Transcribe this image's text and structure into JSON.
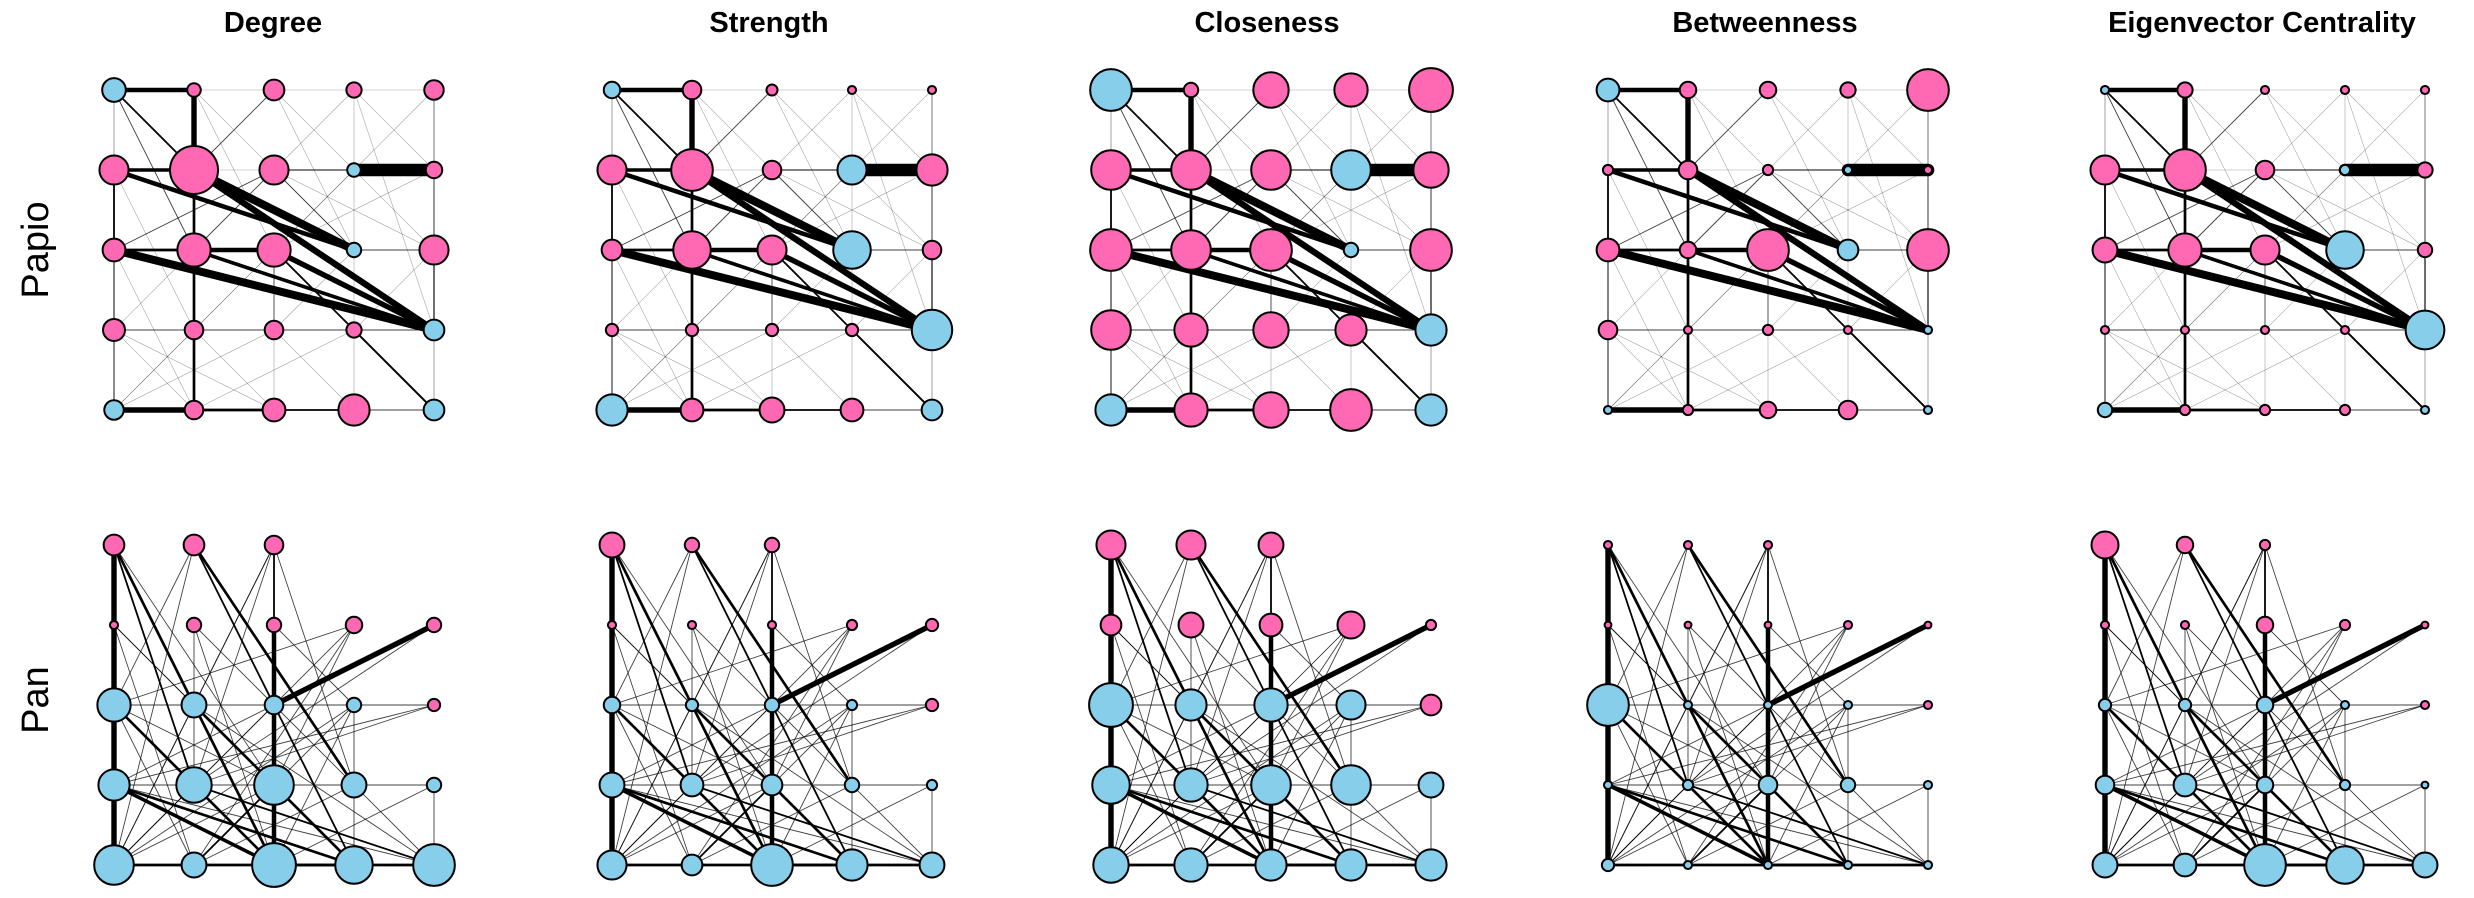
{
  "columns": [
    "Degree",
    "Strength",
    "Closeness",
    "Betweenness",
    "Eigenvector Centrality"
  ],
  "rows": [
    "Papio",
    "Pan"
  ],
  "colors": {
    "female": "#ff69b4",
    "male": "#87ceeb",
    "outline": "#000000",
    "edge": "#000000"
  },
  "node_size_scale": {
    "min_radius_px": 3,
    "max_radius_px": 24,
    "value_range": [
      0,
      1
    ]
  },
  "panels": {
    "Papio": {
      "nodes": [
        {
          "id": 0,
          "r": 0,
          "c": 0,
          "sex": "male"
        },
        {
          "id": 1,
          "r": 0,
          "c": 1,
          "sex": "female"
        },
        {
          "id": 2,
          "r": 0,
          "c": 2,
          "sex": "female"
        },
        {
          "id": 3,
          "r": 0,
          "c": 3,
          "sex": "female"
        },
        {
          "id": 4,
          "r": 0,
          "c": 4,
          "sex": "female"
        },
        {
          "id": 5,
          "r": 1,
          "c": 0,
          "sex": "female"
        },
        {
          "id": 6,
          "r": 1,
          "c": 1,
          "sex": "female"
        },
        {
          "id": 7,
          "r": 1,
          "c": 2,
          "sex": "female"
        },
        {
          "id": 8,
          "r": 1,
          "c": 3,
          "sex": "male"
        },
        {
          "id": 9,
          "r": 1,
          "c": 4,
          "sex": "female"
        },
        {
          "id": 10,
          "r": 2,
          "c": 0,
          "sex": "female"
        },
        {
          "id": 11,
          "r": 2,
          "c": 1,
          "sex": "female"
        },
        {
          "id": 12,
          "r": 2,
          "c": 2,
          "sex": "female"
        },
        {
          "id": 13,
          "r": 2,
          "c": 3,
          "sex": "male"
        },
        {
          "id": 14,
          "r": 2,
          "c": 4,
          "sex": "female"
        },
        {
          "id": 15,
          "r": 3,
          "c": 0,
          "sex": "female"
        },
        {
          "id": 16,
          "r": 3,
          "c": 1,
          "sex": "female"
        },
        {
          "id": 17,
          "r": 3,
          "c": 2,
          "sex": "female"
        },
        {
          "id": 18,
          "r": 3,
          "c": 3,
          "sex": "female"
        },
        {
          "id": 19,
          "r": 3,
          "c": 4,
          "sex": "male"
        },
        {
          "id": 20,
          "r": 4,
          "c": 0,
          "sex": "male"
        },
        {
          "id": 21,
          "r": 4,
          "c": 1,
          "sex": "female"
        },
        {
          "id": 22,
          "r": 4,
          "c": 2,
          "sex": "female"
        },
        {
          "id": 23,
          "r": 4,
          "c": 3,
          "sex": "female"
        },
        {
          "id": 24,
          "r": 4,
          "c": 4,
          "sex": "male"
        }
      ],
      "edges": [
        [
          0,
          1,
          5
        ],
        [
          1,
          6,
          6
        ],
        [
          5,
          6,
          4
        ],
        [
          5,
          10,
          2
        ],
        [
          6,
          13,
          9
        ],
        [
          6,
          19,
          7
        ],
        [
          5,
          13,
          5
        ],
        [
          10,
          19,
          9
        ],
        [
          10,
          11,
          3
        ],
        [
          11,
          12,
          5
        ],
        [
          12,
          19,
          6
        ],
        [
          11,
          19,
          4
        ],
        [
          8,
          9,
          14
        ],
        [
          7,
          8,
          1.5
        ],
        [
          20,
          21,
          6
        ],
        [
          21,
          22,
          3
        ],
        [
          22,
          23,
          2
        ],
        [
          23,
          24,
          1
        ],
        [
          14,
          19,
          1.5
        ],
        [
          15,
          16,
          1
        ],
        [
          16,
          17,
          1
        ],
        [
          17,
          18,
          1
        ],
        [
          18,
          19,
          1
        ],
        [
          9,
          14,
          1
        ],
        [
          4,
          9,
          0.8
        ],
        [
          12,
          24,
          2
        ],
        [
          18,
          24,
          2
        ],
        [
          13,
          14,
          1
        ],
        [
          6,
          21,
          3
        ],
        [
          0,
          6,
          2
        ],
        [
          0,
          11,
          1
        ],
        [
          1,
          7,
          0.5
        ],
        [
          2,
          6,
          1
        ],
        [
          3,
          7,
          0.5
        ],
        [
          4,
          8,
          0.5
        ],
        [
          5,
          9,
          0.5
        ],
        [
          5,
          15,
          1
        ],
        [
          5,
          20,
          1
        ],
        [
          10,
          20,
          1
        ],
        [
          15,
          20,
          0.5
        ],
        [
          2,
          13,
          0.5
        ],
        [
          2,
          14,
          0.5
        ],
        [
          3,
          13,
          0.5
        ],
        [
          3,
          19,
          0.5
        ],
        [
          4,
          19,
          0.5
        ],
        [
          7,
          13,
          1
        ],
        [
          7,
          14,
          0.5
        ],
        [
          8,
          12,
          0.5
        ],
        [
          9,
          12,
          0.5
        ],
        [
          10,
          7,
          1
        ],
        [
          11,
          7,
          1
        ],
        [
          12,
          8,
          0.5
        ],
        [
          15,
          11,
          0.5
        ],
        [
          16,
          12,
          0.5
        ],
        [
          17,
          13,
          0.5
        ],
        [
          20,
          12,
          0.5
        ],
        [
          20,
          16,
          0.5
        ],
        [
          21,
          16,
          0.5
        ],
        [
          22,
          17,
          0.5
        ],
        [
          23,
          18,
          0.5
        ],
        [
          24,
          14,
          0.5
        ],
        [
          15,
          21,
          0.5
        ],
        [
          16,
          22,
          0.5
        ],
        [
          17,
          23,
          0.5
        ],
        [
          18,
          14,
          0.5
        ],
        [
          0,
          5,
          0.5
        ],
        [
          1,
          2,
          0.5
        ],
        [
          2,
          3,
          0.5
        ],
        [
          3,
          4,
          0.5
        ],
        [
          10,
          15,
          0.5
        ],
        [
          6,
          11,
          2
        ],
        [
          11,
          16,
          1
        ],
        [
          12,
          17,
          1
        ],
        [
          13,
          18,
          0.5
        ],
        [
          14,
          24,
          0.5
        ],
        [
          0,
          10,
          0.5
        ],
        [
          1,
          12,
          0.5
        ],
        [
          3,
          9,
          0.5
        ],
        [
          4,
          14,
          0.5
        ],
        [
          5,
          16,
          0.5
        ],
        [
          10,
          21,
          0.5
        ],
        [
          15,
          22,
          0.5
        ],
        [
          20,
          17,
          0.5
        ],
        [
          21,
          18,
          0.5
        ]
      ],
      "sizes": {
        "Degree": [
          0.42,
          0.18,
          0.35,
          0.22,
          0.32,
          0.55,
          1.0,
          0.55,
          0.18,
          0.25,
          0.4,
          0.65,
          0.65,
          0.2,
          0.55,
          0.38,
          0.3,
          0.3,
          0.22,
          0.35,
          0.32,
          0.3,
          0.4,
          0.6,
          0.35
        ],
        "Strength": [
          0.25,
          0.3,
          0.12,
          0.05,
          0.05,
          0.55,
          0.85,
          0.3,
          0.55,
          0.6,
          0.35,
          0.75,
          0.55,
          0.75,
          0.3,
          0.15,
          0.15,
          0.15,
          0.15,
          0.82,
          0.6,
          0.4,
          0.45,
          0.4,
          0.35
        ],
        "Closeness": [
          0.85,
          0.2,
          0.7,
          0.65,
          0.9,
          0.8,
          0.8,
          0.8,
          0.8,
          0.7,
          0.85,
          0.8,
          0.85,
          0.2,
          0.85,
          0.8,
          0.65,
          0.7,
          0.6,
          0.6,
          0.6,
          0.65,
          0.7,
          0.85,
          0.6
        ],
        "Betweenness": [
          0.4,
          0.25,
          0.25,
          0.22,
          0.85,
          0.1,
          0.3,
          0.1,
          0.05,
          0.05,
          0.4,
          0.25,
          0.85,
          0.35,
          0.85,
          0.3,
          0.05,
          0.1,
          0.05,
          0.05,
          0.05,
          0.1,
          0.25,
          0.3,
          0.05
        ],
        "Eigenvector Centrality": [
          0.05,
          0.22,
          0.05,
          0.05,
          0.05,
          0.55,
          0.85,
          0.3,
          0.1,
          0.22,
          0.45,
          0.65,
          0.55,
          0.75,
          0.2,
          0.05,
          0.05,
          0.05,
          0.05,
          0.78,
          0.2,
          0.1,
          0.1,
          0.1,
          0.05
        ]
      }
    },
    "Pan": {
      "nodes": [
        {
          "id": 0,
          "r": 0,
          "c": 0,
          "sex": "female"
        },
        {
          "id": 1,
          "r": 0,
          "c": 1,
          "sex": "female"
        },
        {
          "id": 2,
          "r": 0,
          "c": 2,
          "sex": "female"
        },
        {
          "id": 3,
          "r": 1,
          "c": 0,
          "sex": "female"
        },
        {
          "id": 4,
          "r": 1,
          "c": 1,
          "sex": "female"
        },
        {
          "id": 5,
          "r": 1,
          "c": 2,
          "sex": "female"
        },
        {
          "id": 6,
          "r": 1,
          "c": 3,
          "sex": "female"
        },
        {
          "id": 7,
          "r": 1,
          "c": 4,
          "sex": "female"
        },
        {
          "id": 8,
          "r": 2,
          "c": 0,
          "sex": "male"
        },
        {
          "id": 9,
          "r": 2,
          "c": 1,
          "sex": "male"
        },
        {
          "id": 10,
          "r": 2,
          "c": 2,
          "sex": "male"
        },
        {
          "id": 11,
          "r": 2,
          "c": 3,
          "sex": "male"
        },
        {
          "id": 12,
          "r": 2,
          "c": 4,
          "sex": "female"
        },
        {
          "id": 13,
          "r": 3,
          "c": 0,
          "sex": "male"
        },
        {
          "id": 14,
          "r": 3,
          "c": 1,
          "sex": "male"
        },
        {
          "id": 15,
          "r": 3,
          "c": 2,
          "sex": "male"
        },
        {
          "id": 16,
          "r": 3,
          "c": 3,
          "sex": "male"
        },
        {
          "id": 17,
          "r": 3,
          "c": 4,
          "sex": "male"
        },
        {
          "id": 18,
          "r": 4,
          "c": 0,
          "sex": "male"
        },
        {
          "id": 19,
          "r": 4,
          "c": 1,
          "sex": "male"
        },
        {
          "id": 20,
          "r": 4,
          "c": 2,
          "sex": "male"
        },
        {
          "id": 21,
          "r": 4,
          "c": 3,
          "sex": "male"
        },
        {
          "id": 22,
          "r": 4,
          "c": 4,
          "sex": "male"
        }
      ],
      "edges": [
        [
          0,
          18,
          6
        ],
        [
          0,
          20,
          3
        ],
        [
          0,
          14,
          2
        ],
        [
          1,
          16,
          3
        ],
        [
          1,
          21,
          2
        ],
        [
          2,
          20,
          2
        ],
        [
          2,
          16,
          1
        ],
        [
          5,
          20,
          5
        ],
        [
          5,
          15,
          3
        ],
        [
          10,
          7,
          6
        ],
        [
          10,
          15,
          2
        ],
        [
          13,
          20,
          4
        ],
        [
          13,
          21,
          3
        ],
        [
          18,
          22,
          3
        ],
        [
          18,
          19,
          2
        ],
        [
          19,
          20,
          2
        ],
        [
          20,
          21,
          3
        ],
        [
          21,
          22,
          2
        ],
        [
          8,
          20,
          3
        ],
        [
          8,
          14,
          2
        ],
        [
          9,
          21,
          3
        ],
        [
          9,
          15,
          2
        ],
        [
          14,
          22,
          2
        ],
        [
          15,
          19,
          2
        ],
        [
          3,
          19,
          1
        ],
        [
          3,
          15,
          1
        ],
        [
          4,
          20,
          1
        ],
        [
          4,
          14,
          1
        ],
        [
          6,
          15,
          1
        ],
        [
          6,
          19,
          1
        ],
        [
          7,
          14,
          1
        ],
        [
          0,
          9,
          1
        ],
        [
          1,
          8,
          1
        ],
        [
          2,
          14,
          1
        ],
        [
          2,
          9,
          1
        ],
        [
          1,
          10,
          1
        ],
        [
          0,
          15,
          1
        ],
        [
          8,
          9,
          1
        ],
        [
          9,
          10,
          1
        ],
        [
          10,
          11,
          1
        ],
        [
          11,
          12,
          1
        ],
        [
          13,
          14,
          1
        ],
        [
          14,
          15,
          1
        ],
        [
          15,
          16,
          1
        ],
        [
          16,
          17,
          1
        ],
        [
          17,
          22,
          1
        ],
        [
          12,
          13,
          1
        ],
        [
          11,
          18,
          1
        ],
        [
          11,
          19,
          1
        ],
        [
          12,
          14,
          1
        ],
        [
          6,
          18,
          1
        ],
        [
          7,
          13,
          1
        ],
        [
          3,
          9,
          1
        ],
        [
          4,
          10,
          1
        ],
        [
          5,
          11,
          1
        ],
        [
          13,
          22,
          1
        ],
        [
          18,
          15,
          1
        ],
        [
          19,
          16,
          1
        ],
        [
          20,
          17,
          1
        ],
        [
          18,
          14,
          1
        ],
        [
          8,
          19,
          1
        ],
        [
          8,
          15,
          1
        ],
        [
          9,
          18,
          1
        ],
        [
          9,
          22,
          1
        ],
        [
          10,
          18,
          1
        ],
        [
          10,
          22,
          1
        ],
        [
          11,
          20,
          1
        ],
        [
          11,
          21,
          1
        ],
        [
          14,
          20,
          1
        ],
        [
          3,
          13,
          1
        ],
        [
          6,
          8,
          1
        ],
        [
          1,
          18,
          1
        ],
        [
          2,
          18,
          1
        ],
        [
          0,
          8,
          1
        ]
      ],
      "sizes": {
        "Degree": [
          0.35,
          0.35,
          0.3,
          0.05,
          0.2,
          0.2,
          0.25,
          0.2,
          0.65,
          0.45,
          0.3,
          0.2,
          0.15,
          0.6,
          0.7,
          0.8,
          0.45,
          0.2,
          0.8,
          0.45,
          0.9,
          0.75,
          0.85
        ],
        "Strength": [
          0.45,
          0.2,
          0.2,
          0.05,
          0.05,
          0.05,
          0.1,
          0.15,
          0.25,
          0.15,
          0.2,
          0.1,
          0.15,
          0.45,
          0.4,
          0.35,
          0.2,
          0.1,
          0.55,
          0.35,
          0.85,
          0.6,
          0.45
        ],
        "Closeness": [
          0.55,
          0.55,
          0.45,
          0.35,
          0.45,
          0.4,
          0.5,
          0.1,
          0.9,
          0.6,
          0.65,
          0.55,
          0.35,
          0.75,
          0.65,
          0.8,
          0.8,
          0.45,
          0.7,
          0.65,
          0.6,
          0.6,
          0.6
        ],
        "Betweenness": [
          0.05,
          0.05,
          0.05,
          0.02,
          0.02,
          0.02,
          0.05,
          0.02,
          0.85,
          0.05,
          0.05,
          0.05,
          0.05,
          0.05,
          0.1,
          0.3,
          0.2,
          0.05,
          0.15,
          0.05,
          0.05,
          0.05,
          0.05
        ],
        "Eigenvector Centrality": [
          0.5,
          0.25,
          0.1,
          0.05,
          0.05,
          0.25,
          0.1,
          0.02,
          0.15,
          0.15,
          0.25,
          0.05,
          0.05,
          0.3,
          0.4,
          0.25,
          0.1,
          0.02,
          0.45,
          0.4,
          0.85,
          0.75,
          0.45
        ]
      }
    }
  }
}
